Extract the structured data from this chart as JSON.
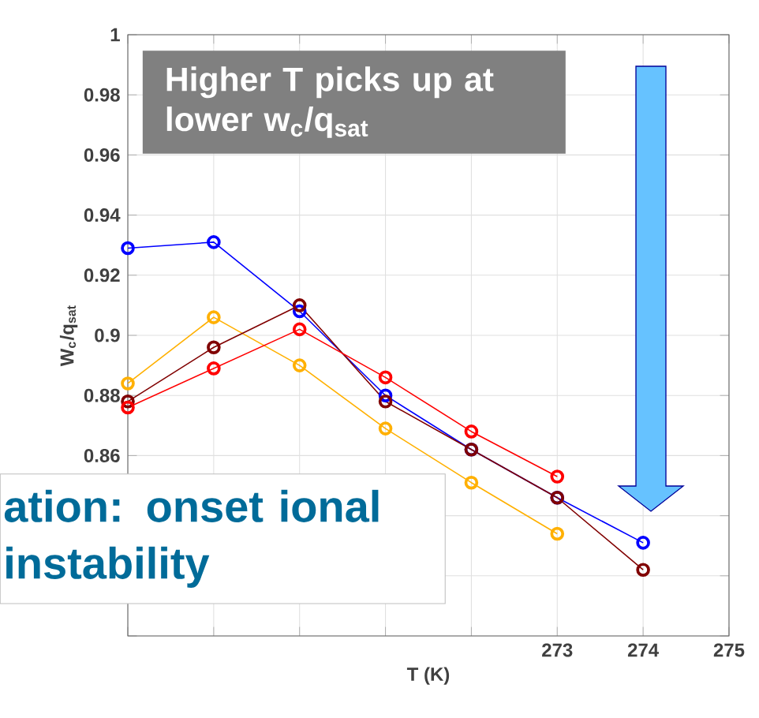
{
  "chart_data": {
    "type": "line",
    "xlabel": "T (K)",
    "ylabel": "W$_{c}$/q$_{sat}$",
    "x": [
      268,
      269,
      270,
      271,
      272,
      273,
      274
    ],
    "series": [
      {
        "color": "#0000ff",
        "values": [
          0.929,
          0.931,
          0.908,
          0.88,
          0.862,
          0.846,
          0.831
        ]
      },
      {
        "color": "#ffb000",
        "values": [
          0.884,
          0.906,
          0.89,
          0.869,
          0.851,
          0.834,
          null
        ]
      },
      {
        "color": "#800000",
        "values": [
          0.878,
          0.896,
          0.91,
          0.878,
          0.862,
          0.846,
          0.822
        ]
      },
      {
        "color": "#ff0000",
        "values": [
          0.876,
          0.889,
          0.902,
          0.886,
          0.868,
          0.853,
          null
        ]
      }
    ],
    "xlim": [
      268,
      275
    ],
    "xticks": [
      {
        "value": 268,
        "label": null
      },
      {
        "value": 269,
        "label": null
      },
      {
        "value": 270,
        "label": null
      },
      {
        "value": 271,
        "label": null
      },
      {
        "value": 272,
        "label": null
      },
      273,
      274,
      275
    ],
    "ylim": [
      0.8,
      1
    ],
    "yticks": [
      {
        "value": 0.8,
        "label": null
      },
      {
        "value": 0.82,
        "label": null
      },
      {
        "value": 0.84,
        "label": null
      },
      0.86,
      0.88,
      0.9,
      0.92,
      0.94,
      0.96,
      0.98,
      1
    ],
    "grid": true,
    "marker": "circle",
    "line_style": "solid",
    "annotations": [
      "Higher T picks up at lower w$_{c}$/q$_{sat}$",
      "ation: onset ional instability"
    ]
  }
}
